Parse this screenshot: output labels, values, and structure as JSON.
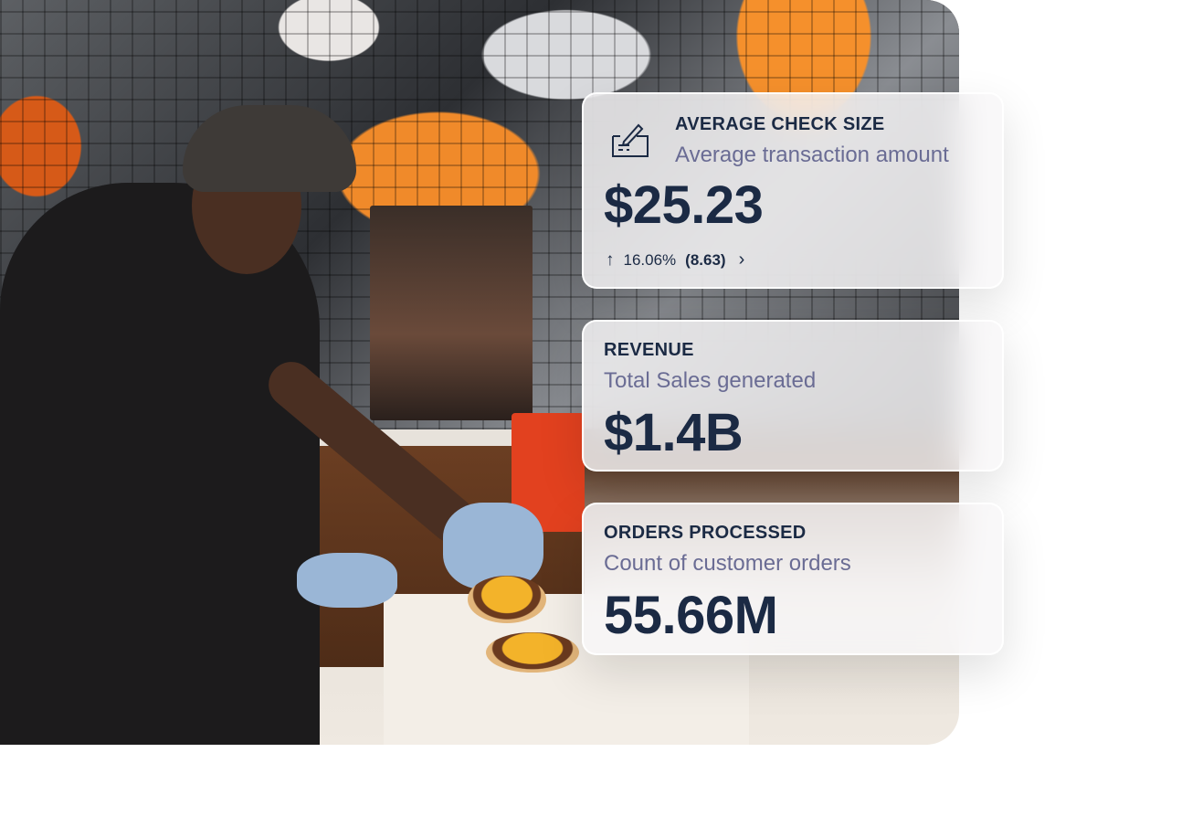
{
  "cards": [
    {
      "title": "AVERAGE CHECK SIZE",
      "subtitle": "Average transaction amount",
      "value": "$25.23",
      "icon": "check-writing-icon",
      "trend": {
        "direction": "up",
        "percent": "16.06%",
        "delta": "(8.63)"
      }
    },
    {
      "title": "REVENUE",
      "subtitle": "Total Sales generated",
      "value": "$1.4B"
    },
    {
      "title": "ORDERS PROCESSED",
      "subtitle": "Count of customer orders",
      "value": "55.66M"
    }
  ],
  "colors": {
    "text": "#1b2a44",
    "subtitle": "#6a6c94",
    "accent_orange": "#f08a2a"
  }
}
